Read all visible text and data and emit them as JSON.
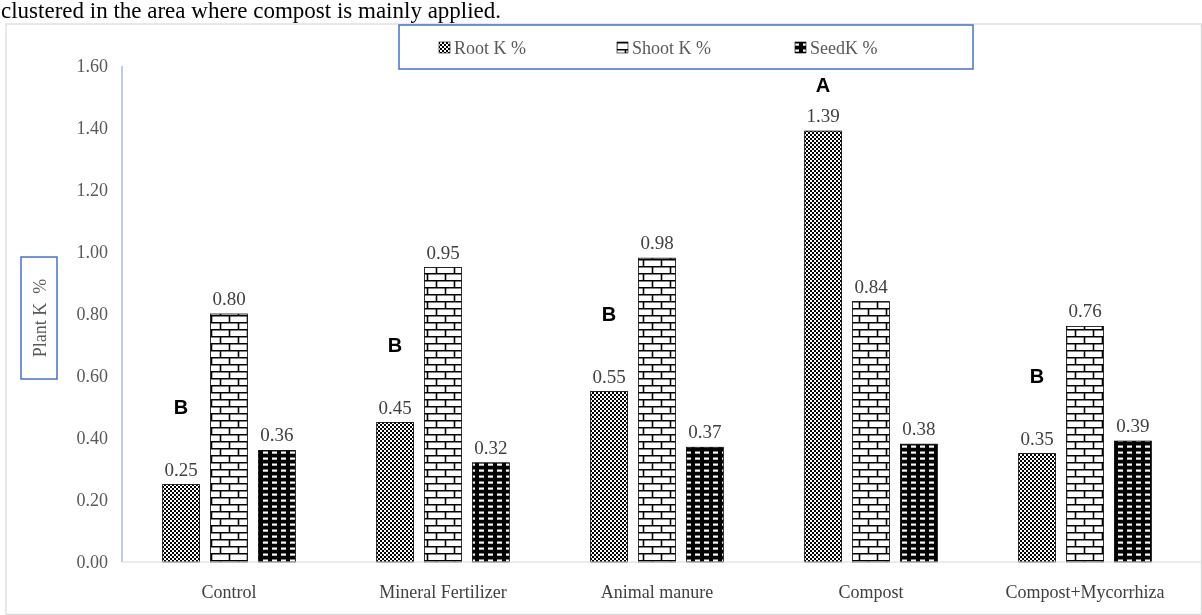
{
  "chart_data": {
    "type": "bar",
    "ylabel": "Plant K  %",
    "annotations": [
      "clustered in the area where compost is mainly applied.",
      "B",
      "B",
      "B",
      "A",
      "B"
    ],
    "categories": [
      "Control",
      "Mineral Fertilizer",
      "Animal manure",
      "Compost",
      "Compost+Mycorrhiza"
    ],
    "series": [
      {
        "name": "Root K %",
        "color": "#000000",
        "values": [
          0.25,
          0.45,
          0.55,
          1.39,
          0.35
        ],
        "value_labels": [
          "0.25",
          "0.45",
          "0.55",
          "1.39",
          "0.35"
        ]
      },
      {
        "name": "Shoot K %",
        "color": "#000000",
        "values": [
          0.8,
          0.95,
          0.98,
          0.84,
          0.76
        ],
        "value_labels": [
          "0.80",
          "0.95",
          "0.98",
          "0.84",
          "0.76"
        ]
      },
      {
        "name": "SeedK %",
        "color": "#000000",
        "values": [
          0.36,
          0.32,
          0.37,
          0.38,
          0.39
        ],
        "value_labels": [
          "0.36",
          "0.32",
          "0.37",
          "0.38",
          "0.39"
        ]
      }
    ],
    "ylim": [
      0,
      1.6
    ],
    "yticks": [
      {
        "value": 0,
        "label": "0.00"
      },
      {
        "value": 0.2,
        "label": "0.20"
      },
      {
        "value": 0.4,
        "label": "0.40"
      },
      {
        "value": 0.6,
        "label": "0.60"
      },
      {
        "value": 0.8,
        "label": "0.80"
      },
      {
        "value": 1,
        "label": "1.00"
      },
      {
        "value": 1.2,
        "label": "1.20"
      },
      {
        "value": 1.4,
        "label": "1.40"
      },
      {
        "value": 1.6,
        "label": "1.60"
      }
    ],
    "legend": "top"
  }
}
